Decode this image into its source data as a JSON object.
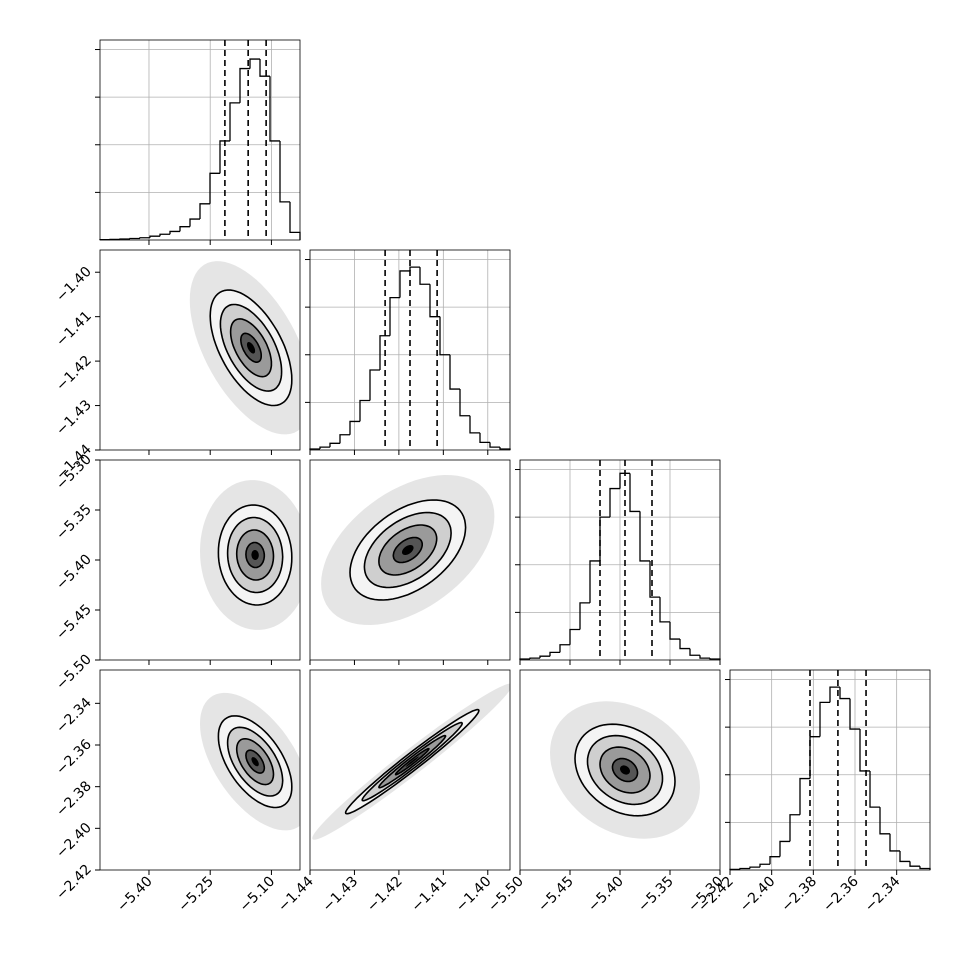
{
  "chart_data": {
    "type": "corner",
    "color": "#000000",
    "grid": true,
    "params": [
      {
        "xlim": [
          -5.52,
          -5.03
        ],
        "xticks": [
          {
            "value": -5.4,
            "label": "−5.40"
          },
          {
            "value": -5.25,
            "label": "−5.25"
          },
          {
            "value": -5.1,
            "label": "−5.10"
          }
        ],
        "bins": [
          -5.52,
          -5.4955,
          -5.471,
          -5.4465,
          -5.422,
          -5.3975,
          -5.373,
          -5.3485,
          -5.324,
          -5.2995,
          -5.275,
          -5.2505,
          -5.226,
          -5.2015,
          -5.177,
          -5.1525,
          -5.128,
          -5.1035,
          -5.079,
          -5.0545,
          -5.03
        ],
        "counts": [
          2,
          3,
          5,
          8,
          12,
          20,
          30,
          45,
          70,
          110,
          190,
          350,
          520,
          720,
          900,
          950,
          860,
          520,
          200,
          40
        ],
        "quantiles": [
          -5.214,
          -5.157,
          -5.113
        ]
      },
      {
        "xlim": [
          -1.44,
          -1.395
        ],
        "xticks": [
          {
            "value": -1.44,
            "label": "−1.44"
          },
          {
            "value": -1.43,
            "label": "−1.43"
          },
          {
            "value": -1.42,
            "label": "−1.42"
          },
          {
            "value": -1.41,
            "label": "−1.41"
          },
          {
            "value": -1.4,
            "label": "−1.40"
          }
        ],
        "bins": [
          -1.44,
          -1.43775,
          -1.4355,
          -1.43325,
          -1.431,
          -1.42875,
          -1.4265,
          -1.42425,
          -1.422,
          -1.41975,
          -1.4175,
          -1.41525,
          -1.413,
          -1.41075,
          -1.4085,
          -1.40625,
          -1.404,
          -1.40175,
          -1.3995,
          -1.39725,
          -1.395
        ],
        "counts": [
          5,
          15,
          35,
          80,
          150,
          260,
          420,
          600,
          800,
          940,
          960,
          870,
          700,
          500,
          320,
          180,
          90,
          40,
          15,
          5
        ],
        "quantiles": [
          -1.4231,
          -1.4175,
          -1.4114
        ]
      },
      {
        "xlim": [
          -5.5,
          -5.3
        ],
        "xticks": [
          {
            "value": -5.5,
            "label": "−5.50"
          },
          {
            "value": -5.45,
            "label": "−5.45"
          },
          {
            "value": -5.4,
            "label": "−5.40"
          },
          {
            "value": -5.35,
            "label": "−5.35"
          },
          {
            "value": -5.3,
            "label": "−5.30"
          }
        ],
        "bins": [
          -5.5,
          -5.49,
          -5.48,
          -5.47,
          -5.46,
          -5.45,
          -5.44,
          -5.43,
          -5.42,
          -5.41,
          -5.4,
          -5.39,
          -5.38,
          -5.37,
          -5.36,
          -5.35,
          -5.34,
          -5.33,
          -5.32,
          -5.31,
          -5.3
        ],
        "counts": [
          5,
          10,
          20,
          40,
          80,
          160,
          300,
          520,
          750,
          900,
          980,
          780,
          520,
          330,
          200,
          110,
          60,
          25,
          10,
          5
        ],
        "quantiles": [
          -5.42,
          -5.395,
          -5.368
        ]
      },
      {
        "xlim": [
          -2.42,
          -2.324
        ],
        "xticks": [
          {
            "value": -2.42,
            "label": "−2.42"
          },
          {
            "value": -2.4,
            "label": "−2.40"
          },
          {
            "value": -2.38,
            "label": "−2.38"
          },
          {
            "value": -2.36,
            "label": "−2.36"
          },
          {
            "value": -2.34,
            "label": "−2.34"
          }
        ],
        "bins": [
          -2.42,
          -2.4152,
          -2.4104,
          -2.4056,
          -2.4008,
          -2.396,
          -2.3912,
          -2.3864,
          -2.3816,
          -2.3768,
          -2.372,
          -2.3672,
          -2.3624,
          -2.3576,
          -2.3528,
          -2.348,
          -2.3432,
          -2.3384,
          -2.3336,
          -2.3288,
          -2.324
        ],
        "counts": [
          3,
          8,
          15,
          30,
          70,
          150,
          290,
          480,
          700,
          880,
          960,
          900,
          740,
          520,
          330,
          190,
          100,
          45,
          20,
          8
        ],
        "quantiles": [
          -2.3816,
          -2.3682,
          -2.3547
        ]
      }
    ],
    "hist_ylim": [
      0,
      1050
    ],
    "hist_yticks": [
      250,
      500,
      750,
      1000
    ],
    "levels": [
      0.5,
      1,
      1.5,
      2
    ],
    "pairs": [
      {
        "center": [
          -5.15,
          -1.417
        ],
        "sigma": [
          0.05,
          0.0065
        ],
        "corr": -0.55
      },
      {
        "center": [
          -5.14,
          -5.395
        ],
        "sigma": [
          0.045,
          0.025
        ],
        "corr": -0.05
      },
      {
        "center": [
          -1.418,
          -5.39
        ],
        "sigma": [
          0.0065,
          0.025
        ],
        "corr": 0.45
      },
      {
        "center": [
          -5.14,
          -2.368
        ],
        "sigma": [
          0.045,
          0.011
        ],
        "corr": -0.55
      },
      {
        "center": [
          -1.417,
          -2.368
        ],
        "sigma": [
          0.0075,
          0.0125
        ],
        "corr": 0.98
      },
      {
        "center": [
          -5.395,
          -2.372
        ],
        "sigma": [
          0.025,
          0.011
        ],
        "corr": -0.25
      }
    ]
  }
}
